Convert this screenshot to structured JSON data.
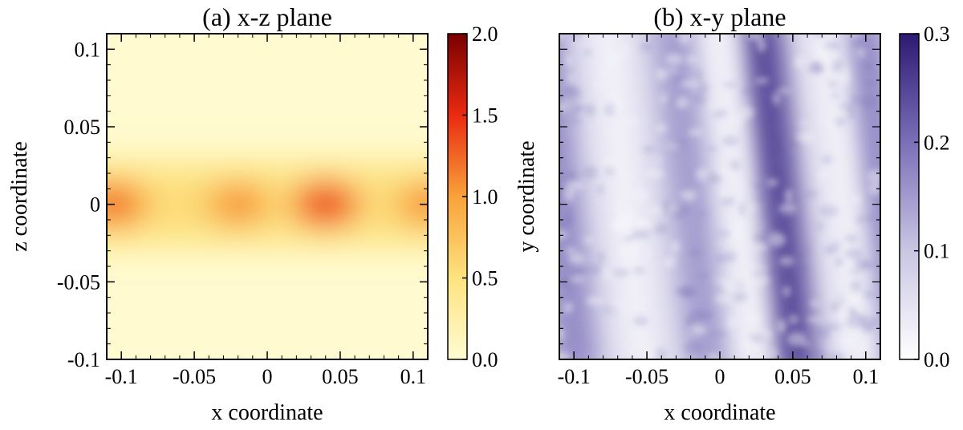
{
  "chart_data": [
    {
      "type": "heatmap",
      "title": "(a) x-z plane",
      "xlabel": "x coordinate",
      "ylabel": "z coordinate",
      "xlim": [
        -0.11,
        0.11
      ],
      "ylim": [
        -0.1,
        0.11
      ],
      "xticks": [
        -0.1,
        -0.05,
        0,
        0.05,
        0.1
      ],
      "xtick_labels": [
        "-0.1",
        "-0.05",
        "0",
        "0.05",
        "0.1"
      ],
      "yticks": [
        -0.1,
        -0.05,
        0,
        0.05,
        0.1
      ],
      "ytick_labels": [
        "-0.1",
        "-0.05",
        "0",
        "0.05",
        "0.1"
      ],
      "colorbar": {
        "range": [
          0.0,
          2.0
        ],
        "ticks": [
          0.0,
          0.5,
          1.0,
          1.5,
          2.0
        ],
        "tick_labels": [
          "0.0",
          "0.5",
          "1.0",
          "1.5",
          "2.0"
        ],
        "colors": [
          "#fffbd2",
          "#fde380",
          "#f9a23a",
          "#ea2a10",
          "#7a0000"
        ]
      },
      "features": [
        {
          "x": -0.105,
          "z": 0.0,
          "value": 1.3
        },
        {
          "x": -0.02,
          "z": 0.0,
          "value": 1.1
        },
        {
          "x": 0.04,
          "z": 0.0,
          "value": 1.5
        },
        {
          "x": 0.11,
          "z": 0.0,
          "value": 1.1
        }
      ],
      "band": {
        "z_center": 0.0,
        "half_width": 0.03,
        "value": 0.7
      }
    },
    {
      "type": "heatmap",
      "title": "(b) x-y plane",
      "xlabel": "x coordinate",
      "ylabel": "y coordinate",
      "xlim": [
        -0.11,
        0.11
      ],
      "xticks": [
        -0.1,
        -0.05,
        0,
        0.05,
        0.1
      ],
      "xtick_labels": [
        "-0.1",
        "-0.05",
        "0",
        "0.05",
        "0.1"
      ],
      "colorbar": {
        "range": [
          0.0,
          0.3
        ],
        "ticks": [
          0.0,
          0.1,
          0.2,
          0.3
        ],
        "tick_labels": [
          "0.0",
          "0.1",
          "0.2",
          "0.3"
        ],
        "colors": [
          "#ffffff",
          "#c9c6e3",
          "#7b6fb8",
          "#2d1a73"
        ]
      },
      "stripes": [
        {
          "x_center": -0.11,
          "value": 0.17
        },
        {
          "x_center": -0.02,
          "value": 0.15
        },
        {
          "x_center": 0.04,
          "value": 0.25
        },
        {
          "x_center": 0.11,
          "value": 0.17
        }
      ],
      "background_value": 0.06
    }
  ]
}
